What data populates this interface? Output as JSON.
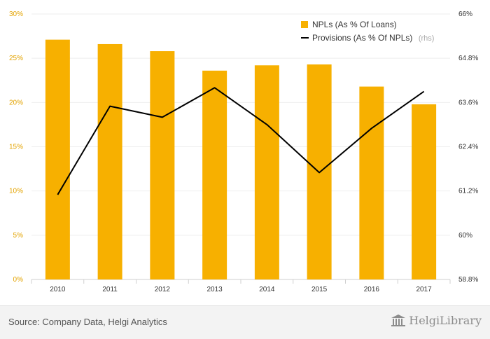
{
  "chart_data": {
    "type": "bar",
    "categories": [
      "2010",
      "2011",
      "2012",
      "2013",
      "2014",
      "2015",
      "2016",
      "2017"
    ],
    "series": [
      {
        "name": "NPLs (As % Of Loans)",
        "type": "bar",
        "axis": "left",
        "color": "#f7b000",
        "values": [
          27.1,
          26.6,
          25.8,
          23.6,
          24.2,
          24.3,
          21.8,
          19.8
        ]
      },
      {
        "name": "Provisions (As % Of NPLs)",
        "type": "line",
        "axis": "right",
        "color": "#000000",
        "values": [
          61.1,
          63.5,
          63.2,
          64.0,
          63.0,
          61.7,
          62.9,
          63.9
        ]
      }
    ],
    "yaxis_left": {
      "min": 0,
      "max": 30,
      "ticks": [
        "0%",
        "5%",
        "10%",
        "15%",
        "20%",
        "25%",
        "30%"
      ],
      "tick_values": [
        0,
        5,
        10,
        15,
        20,
        25,
        30
      ]
    },
    "yaxis_right": {
      "min": 58.8,
      "max": 66,
      "ticks": [
        "58.8%",
        "60%",
        "61.2%",
        "62.4%",
        "63.6%",
        "64.8%",
        "66%"
      ],
      "tick_values": [
        58.8,
        60,
        61.2,
        62.4,
        63.6,
        64.8,
        66
      ]
    },
    "legend": {
      "placement": "top-right",
      "bar_label": "NPLs (As % Of Loans)",
      "line_label": "Provisions (As % Of NPLs)",
      "line_suffix": "(rhs)"
    },
    "grid": true
  },
  "footer": {
    "source": "Source: Company Data, Helgi Analytics",
    "logo_text": "HelgiLibrary"
  }
}
